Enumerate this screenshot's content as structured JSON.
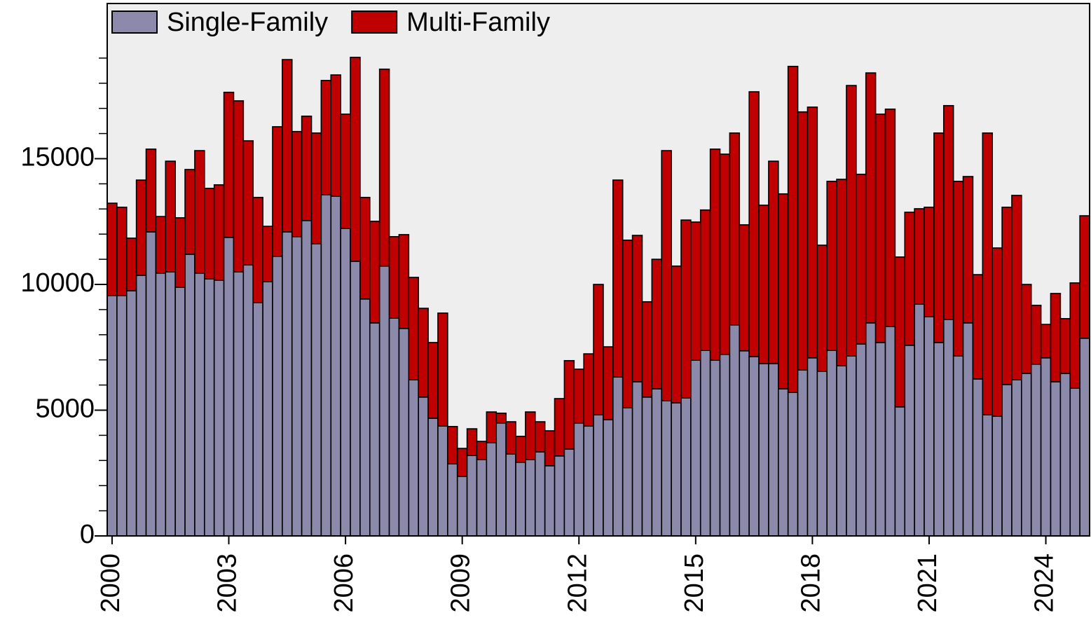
{
  "chart_data": {
    "type": "stacked_bar",
    "x": [
      2000,
      2000.25,
      2000.5,
      2000.75,
      2001,
      2001.25,
      2001.5,
      2001.75,
      2002,
      2002.25,
      2002.5,
      2002.75,
      2003,
      2003.25,
      2003.5,
      2003.75,
      2004,
      2004.25,
      2004.5,
      2004.75,
      2005,
      2005.25,
      2005.5,
      2005.75,
      2006,
      2006.25,
      2006.5,
      2006.75,
      2007,
      2007.25,
      2007.5,
      2007.75,
      2008,
      2008.25,
      2008.5,
      2008.75,
      2009,
      2009.25,
      2009.5,
      2009.75,
      2010,
      2010.25,
      2010.5,
      2010.75,
      2011,
      2011.25,
      2011.5,
      2011.75,
      2012,
      2012.25,
      2012.5,
      2012.75,
      2013,
      2013.25,
      2013.5,
      2013.75,
      2014,
      2014.25,
      2014.5,
      2014.75,
      2015,
      2015.25,
      2015.5,
      2015.75,
      2016,
      2016.25,
      2016.5,
      2016.75,
      2017,
      2017.25,
      2017.5,
      2017.75,
      2018,
      2018.25,
      2018.5,
      2018.75,
      2019,
      2019.25,
      2019.5,
      2019.75,
      2020,
      2020.25,
      2020.5,
      2020.75,
      2021,
      2021.25,
      2021.5,
      2021.75,
      2022,
      2022.25,
      2022.5,
      2022.75,
      2023,
      2023.25,
      2023.5,
      2023.75,
      2024,
      2024.25,
      2024.5,
      2024.75,
      2025
    ],
    "series": [
      {
        "name": "Single-Family",
        "color": "#8c8aab",
        "values": [
          9560,
          9560,
          9750,
          10360,
          12090,
          10450,
          10500,
          9890,
          11200,
          10450,
          10220,
          10170,
          11870,
          10500,
          10780,
          9280,
          10110,
          11120,
          12090,
          11900,
          12540,
          11620,
          13570,
          13510,
          12230,
          10920,
          9420,
          8470,
          10730,
          8660,
          8250,
          6210,
          5520,
          4680,
          4370,
          2870,
          2370,
          3200,
          3040,
          3710,
          4490,
          3260,
          2930,
          3040,
          3340,
          2790,
          3180,
          3450,
          4490,
          4370,
          4820,
          4620,
          6320,
          5100,
          6130,
          5520,
          5850,
          5380,
          5290,
          5490,
          6990,
          7380,
          6990,
          7220,
          8390,
          7360,
          7130,
          6850,
          6850,
          5850,
          5710,
          6600,
          7080,
          6550,
          7380,
          6770,
          7160,
          7630,
          8470,
          7690,
          8330,
          5130,
          7580,
          9220,
          8720,
          7690,
          8610,
          7160,
          8470,
          6240,
          4820,
          4760,
          6020,
          6210,
          6460,
          6830,
          7080,
          6130,
          6460,
          5880,
          7860
        ]
      },
      {
        "name": "Multi-Family",
        "color": "#c00000",
        "values": [
          3670,
          3510,
          2090,
          3790,
          3290,
          2250,
          4400,
          2760,
          3370,
          4870,
          3600,
          3790,
          5770,
          6800,
          4930,
          4180,
          2200,
          5150,
          6850,
          4180,
          4150,
          4400,
          4540,
          4820,
          4540,
          8110,
          4040,
          4040,
          7830,
          3240,
          3730,
          4070,
          3530,
          3010,
          4490,
          1480,
          1110,
          1060,
          720,
          1220,
          390,
          1280,
          1030,
          1890,
          1200,
          1390,
          2280,
          3520,
          2140,
          2870,
          5180,
          2900,
          7830,
          6660,
          5820,
          3790,
          5150,
          9940,
          5440,
          7070,
          5490,
          5580,
          8390,
          7960,
          7630,
          5010,
          10530,
          6300,
          8050,
          7750,
          12960,
          10260,
          9970,
          5010,
          6720,
          7410,
          10750,
          6750,
          9940,
          9080,
          8640,
          5960,
          5290,
          3790,
          4350,
          8330,
          8500,
          6940,
          5820,
          4150,
          11200,
          6690,
          7050,
          7330,
          3540,
          2340,
          1330,
          3510,
          2180,
          4180,
          4870
        ]
      }
    ],
    "xlim": [
      1999.875,
      2025.125
    ],
    "xticks": [
      2000,
      2003,
      2006,
      2009,
      2012,
      2015,
      2018,
      2021,
      2024
    ],
    "ylim": [
      0,
      21170
    ],
    "yticks": [
      0,
      5000,
      10000,
      15000
    ],
    "yticks_minor": [
      1000,
      2000,
      3000,
      4000,
      6000,
      7000,
      8000,
      9000,
      11000,
      12000,
      13000,
      14000,
      16000,
      17000,
      18000,
      19000
    ],
    "bar_width": 0.25,
    "legend": "top-left",
    "background": "#eeeeee"
  }
}
